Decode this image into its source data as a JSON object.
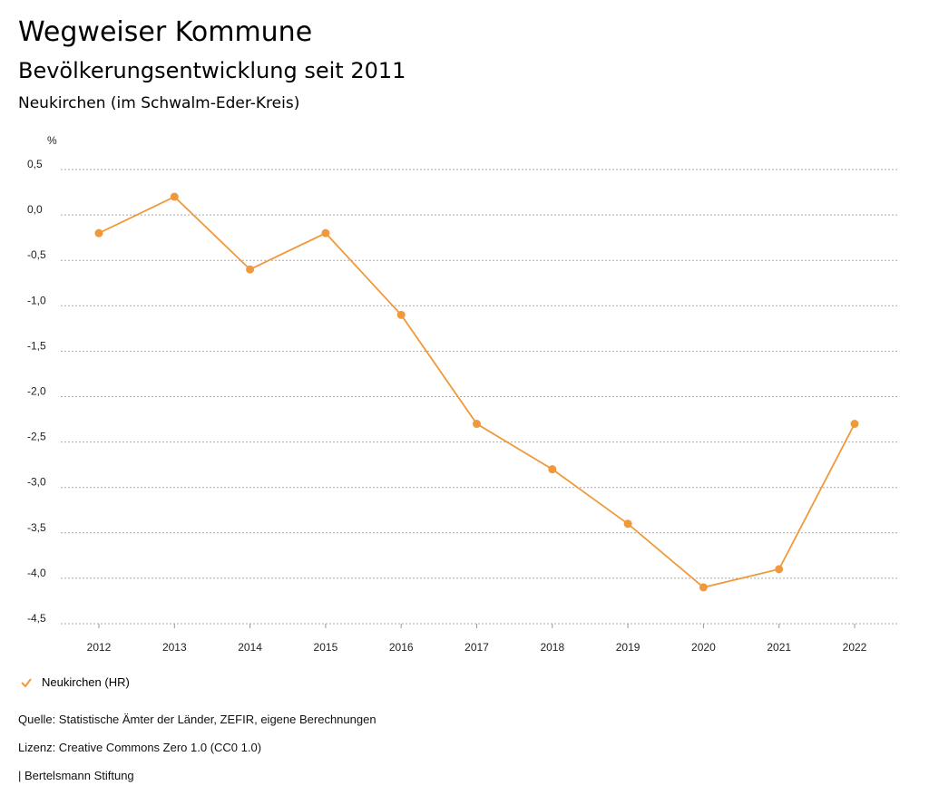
{
  "header": {
    "title": "Wegweiser Kommune",
    "subtitle": "Bevölkerungsentwicklung seit 2011",
    "region": "Neukirchen (im Schwalm-Eder-Kreis)"
  },
  "chart_data": {
    "type": "line",
    "ylabel": "%",
    "categories": [
      "2012",
      "2013",
      "2014",
      "2015",
      "2016",
      "2017",
      "2018",
      "2019",
      "2020",
      "2021",
      "2022"
    ],
    "series": [
      {
        "name": "Neukirchen (HR)",
        "color": "#f0993a",
        "values": [
          -0.2,
          0.2,
          -0.6,
          -0.2,
          -1.1,
          -2.3,
          -2.8,
          -3.4,
          -4.1,
          -3.9,
          -2.3
        ]
      }
    ],
    "ylim": [
      -4.5,
      0.5
    ],
    "yticks": [
      0.5,
      0.0,
      -0.5,
      -1.0,
      -1.5,
      -2.0,
      -2.5,
      -3.0,
      -3.5,
      -4.0,
      -4.5
    ],
    "ytick_labels": [
      "0,5",
      "0,0",
      "-0,5",
      "-1,0",
      "-1,5",
      "-2,0",
      "-2,5",
      "-3,0",
      "-3,5",
      "-4,0",
      "-4,5"
    ],
    "grid": true,
    "legend": "bottom-left"
  },
  "legend": {
    "label": "Neukirchen (HR)"
  },
  "footer": {
    "source": "Quelle: Statistische Ämter der Länder, ZEFIR, eigene Berechnungen",
    "license": "Lizenz: Creative Commons Zero 1.0 (CC0 1.0)",
    "brand": "| Bertelsmann Stiftung"
  }
}
